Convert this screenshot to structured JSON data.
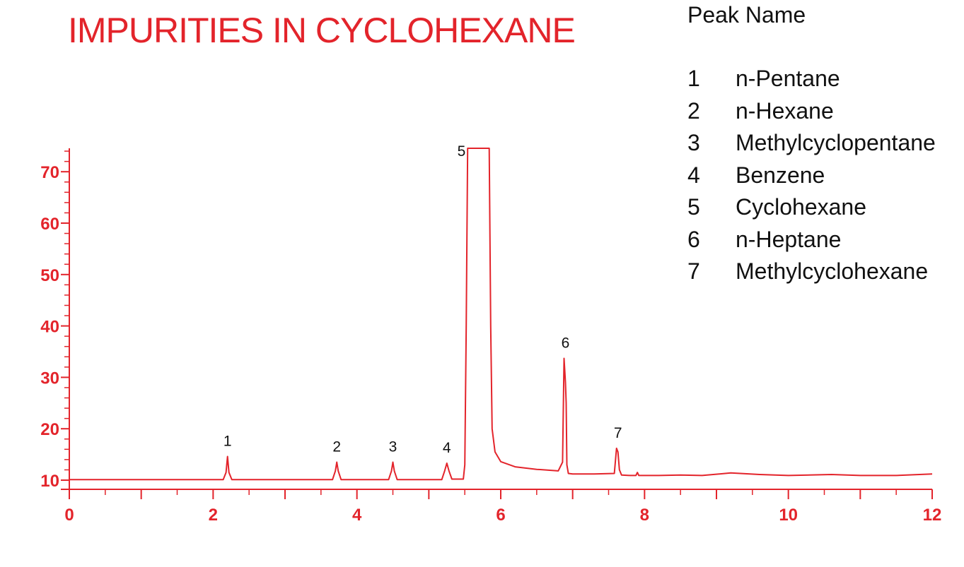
{
  "chart_title": "IMPURITIES IN CYCLOHEXANE",
  "legend": {
    "header": "Peak Name",
    "items": [
      {
        "num": "1",
        "name": "n-Pentane"
      },
      {
        "num": "2",
        "name": "n-Hexane"
      },
      {
        "num": "3",
        "name": "Methylcyclopentane"
      },
      {
        "num": "4",
        "name": "Benzene"
      },
      {
        "num": "5",
        "name": "Cyclohexane"
      },
      {
        "num": "6",
        "name": "n-Heptane"
      },
      {
        "num": "7",
        "name": "Methylcyclohexane"
      }
    ]
  },
  "colors": {
    "accent": "#e3242b",
    "text": "#111111"
  },
  "chart_data": {
    "type": "line",
    "title": "IMPURITIES IN CYCLOHEXANE",
    "xlabel": "",
    "ylabel": "",
    "xlim": [
      0,
      12
    ],
    "ylim": [
      8,
      75
    ],
    "x_ticks": [
      "0",
      "2",
      "4",
      "6",
      "8",
      "10",
      "12"
    ],
    "y_ticks": [
      "10",
      "20",
      "30",
      "40",
      "50",
      "60",
      "70"
    ],
    "grid": false,
    "baseline": 10,
    "peaks": [
      {
        "label": "1",
        "x": 2.2,
        "height": 14.6,
        "width": 0.035
      },
      {
        "label": "2",
        "x": 3.72,
        "height": 13.5,
        "width": 0.035
      },
      {
        "label": "3",
        "x": 4.5,
        "height": 13.5,
        "width": 0.045
      },
      {
        "label": "4",
        "x": 5.25,
        "height": 13.3,
        "width": 0.05
      },
      {
        "label": "5",
        "x": 5.7,
        "height": 75,
        "width": 0.14
      },
      {
        "label": "6",
        "x": 6.9,
        "height": 33.7,
        "width": 0.02
      },
      {
        "label": "7",
        "x": 7.63,
        "height": 16.2,
        "width": 0.025
      }
    ],
    "series": [
      {
        "x": [
          0,
          2.14,
          2.18,
          2.2,
          2.22,
          2.26,
          3.66,
          3.7,
          3.72,
          3.74,
          3.78,
          4.44,
          4.48,
          4.5,
          4.52,
          4.56,
          5.18,
          5.22,
          5.25,
          5.28,
          5.32,
          5.48,
          5.5,
          5.52,
          5.54,
          5.56,
          5.62,
          5.7,
          5.78,
          5.84,
          5.86,
          5.88,
          5.92,
          6.0,
          6.2,
          6.5,
          6.8,
          6.86,
          6.88,
          6.9,
          6.91,
          6.92,
          6.94,
          7.0,
          7.3,
          7.58,
          7.61,
          7.63,
          7.65,
          7.68,
          7.8,
          7.88,
          7.9,
          7.92,
          8.2,
          8.5,
          8.8,
          9.2,
          9.6,
          10.0,
          10.6,
          11.0,
          11.5,
          12.0
        ],
        "y": [
          10.1,
          10.1,
          11.5,
          14.6,
          11.5,
          10.1,
          10.1,
          11.8,
          13.5,
          11.8,
          10.1,
          10.1,
          11.8,
          13.5,
          11.8,
          10.1,
          10.1,
          11.8,
          13.3,
          11.8,
          10.2,
          10.2,
          13.0,
          40.0,
          75.0,
          75.0,
          75.0,
          75.0,
          75.0,
          75.0,
          40.0,
          20.0,
          15.5,
          13.6,
          12.6,
          12.1,
          11.8,
          13.5,
          33.7,
          29.0,
          25.0,
          13.0,
          11.3,
          11.2,
          11.2,
          11.3,
          16.2,
          15.5,
          12.0,
          11.0,
          10.9,
          10.9,
          11.5,
          10.9,
          10.9,
          11.0,
          10.9,
          11.4,
          11.1,
          10.9,
          11.1,
          10.9,
          10.9,
          11.2
        ]
      }
    ]
  }
}
